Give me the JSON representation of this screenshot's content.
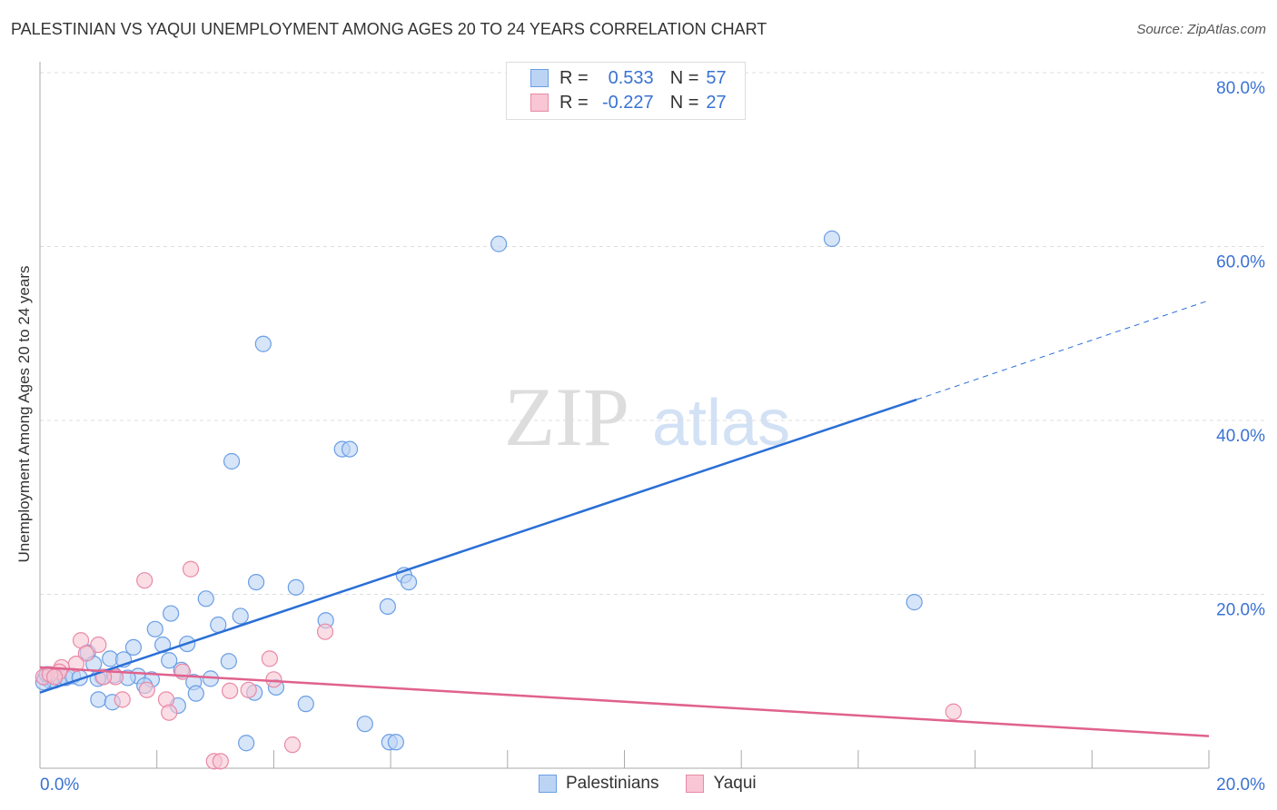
{
  "chart_data": {
    "type": "scatter",
    "title": "PALESTINIAN VS YAQUI UNEMPLOYMENT AMONG AGES 20 TO 24 YEARS CORRELATION CHART",
    "source": "Source: ZipAtlas.com",
    "xlabel": "",
    "ylabel": "Unemployment Among Ages 20 to 24 years",
    "xlim": [
      0,
      20
    ],
    "ylim": [
      0,
      80
    ],
    "x_tick_labels": [
      "0.0%",
      "20.0%"
    ],
    "y_tick_labels": [
      "20.0%",
      "40.0%",
      "60.0%",
      "80.0%"
    ],
    "y_ticks": [
      20,
      40,
      60,
      80
    ],
    "grid": true,
    "watermark": "ZIPatlas",
    "legend_stats": [
      {
        "r_label": "R =",
        "r": "0.533",
        "n_label": "N =",
        "n": "57"
      },
      {
        "r_label": "R =",
        "r": "-0.227",
        "n_label": "N =",
        "n": "27"
      }
    ],
    "series": [
      {
        "name": "Palestinians",
        "color": "#6a9ee6",
        "fill": "#bcd4f4",
        "trend": {
          "x0": 0,
          "y0": 8.7,
          "x1": 15.0,
          "y1": 42.4,
          "dash_to_x": 20,
          "dash_to_y": 53.8,
          "color": "#2a6fd6"
        },
        "points": [
          [
            7.85,
            60.3
          ],
          [
            13.55,
            60.9
          ],
          [
            3.82,
            48.8
          ],
          [
            3.28,
            35.3
          ],
          [
            5.17,
            36.7
          ],
          [
            5.3,
            36.7
          ],
          [
            3.7,
            21.4
          ],
          [
            4.38,
            20.8
          ],
          [
            6.23,
            22.2
          ],
          [
            6.31,
            21.4
          ],
          [
            5.95,
            18.6
          ],
          [
            14.96,
            19.1
          ],
          [
            4.89,
            17.0
          ],
          [
            2.84,
            19.5
          ],
          [
            2.24,
            17.8
          ],
          [
            3.43,
            17.5
          ],
          [
            3.05,
            16.5
          ],
          [
            1.97,
            16.0
          ],
          [
            1.6,
            13.9
          ],
          [
            2.1,
            14.2
          ],
          [
            2.52,
            14.3
          ],
          [
            0.82,
            13.3
          ],
          [
            1.2,
            12.6
          ],
          [
            1.43,
            12.5
          ],
          [
            2.21,
            12.4
          ],
          [
            3.23,
            12.3
          ],
          [
            0.92,
            12.0
          ],
          [
            2.42,
            11.3
          ],
          [
            1.68,
            10.6
          ],
          [
            1.91,
            10.2
          ],
          [
            2.92,
            10.3
          ],
          [
            2.63,
            9.9
          ],
          [
            1.79,
            9.5
          ],
          [
            4.04,
            9.3
          ],
          [
            3.67,
            8.7
          ],
          [
            2.67,
            8.6
          ],
          [
            1.0,
            7.9
          ],
          [
            1.24,
            7.6
          ],
          [
            2.36,
            7.2
          ],
          [
            4.55,
            7.4
          ],
          [
            5.56,
            5.1
          ],
          [
            3.53,
            2.9
          ],
          [
            5.98,
            3.0
          ],
          [
            6.09,
            3.0
          ],
          [
            0.09,
            10.4
          ],
          [
            0.17,
            10.1
          ],
          [
            0.25,
            10.1
          ],
          [
            0.33,
            10.4
          ],
          [
            0.44,
            10.4
          ],
          [
            0.56,
            10.6
          ],
          [
            0.68,
            10.4
          ],
          [
            1.07,
            10.5
          ],
          [
            1.27,
            10.7
          ],
          [
            1.5,
            10.4
          ],
          [
            0.99,
            10.3
          ],
          [
            0.06,
            9.9
          ],
          [
            0.12,
            10.8
          ]
        ]
      },
      {
        "name": "Yaqui",
        "color": "#e98aa6",
        "fill": "#f8c6d4",
        "trend": {
          "x0": 0,
          "y0": 11.6,
          "x1": 20,
          "y1": 3.7,
          "color": "#e0628c"
        },
        "points": [
          [
            1.79,
            21.6
          ],
          [
            2.58,
            22.9
          ],
          [
            0.7,
            14.7
          ],
          [
            1.0,
            14.2
          ],
          [
            4.88,
            15.7
          ],
          [
            3.93,
            12.6
          ],
          [
            0.79,
            13.2
          ],
          [
            0.62,
            12.0
          ],
          [
            0.37,
            11.6
          ],
          [
            0.33,
            11.1
          ],
          [
            1.29,
            10.5
          ],
          [
            1.09,
            10.5
          ],
          [
            2.44,
            11.1
          ],
          [
            4.0,
            10.2
          ],
          [
            3.25,
            8.9
          ],
          [
            3.57,
            9.0
          ],
          [
            1.83,
            9.0
          ],
          [
            2.16,
            7.9
          ],
          [
            1.41,
            7.9
          ],
          [
            2.21,
            6.4
          ],
          [
            4.32,
            2.7
          ],
          [
            2.98,
            0.8
          ],
          [
            3.09,
            0.8
          ],
          [
            15.63,
            6.5
          ],
          [
            0.06,
            10.5
          ],
          [
            0.17,
            10.8
          ],
          [
            0.25,
            10.5
          ]
        ]
      }
    ]
  }
}
